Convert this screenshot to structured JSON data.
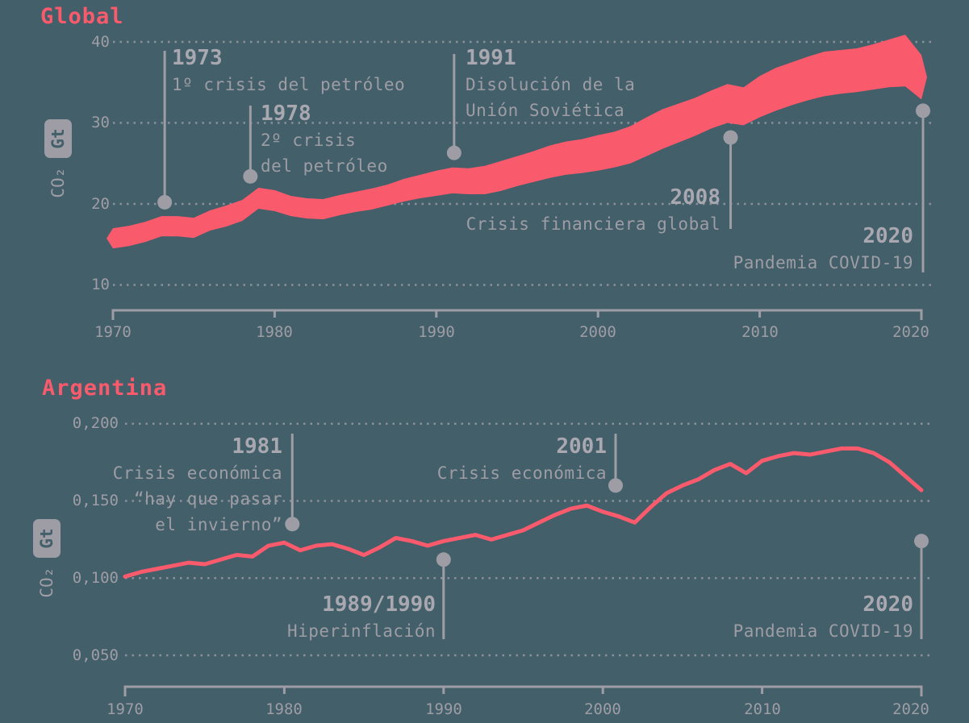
{
  "colors": {
    "background": "#425F6A",
    "accent": "#F95A6C",
    "label": "#9E9DA5",
    "label_strong": "#A9A8B0"
  },
  "chart_data": [
    {
      "id": "global",
      "type": "area",
      "title": "Global",
      "ylabel_prefix": "CO₂",
      "ylabel_badge": "Gt",
      "x": [
        1970,
        1971,
        1972,
        1973,
        1974,
        1975,
        1976,
        1977,
        1978,
        1979,
        1980,
        1981,
        1982,
        1983,
        1984,
        1985,
        1986,
        1987,
        1988,
        1989,
        1990,
        1991,
        1992,
        1993,
        1994,
        1995,
        1996,
        1997,
        1998,
        1999,
        2000,
        2001,
        2002,
        2003,
        2004,
        2005,
        2006,
        2007,
        2008,
        2009,
        2010,
        2011,
        2012,
        2013,
        2014,
        2015,
        2016,
        2017,
        2018,
        2019,
        2020
      ],
      "series": [
        {
          "name": "upper",
          "values": [
            17.0,
            17.3,
            17.8,
            18.5,
            18.5,
            18.3,
            19.2,
            19.8,
            20.5,
            22.0,
            21.7,
            21.0,
            20.7,
            20.6,
            21.1,
            21.5,
            21.9,
            22.4,
            23.1,
            23.6,
            24.1,
            24.5,
            24.4,
            24.7,
            25.3,
            25.9,
            26.5,
            27.2,
            27.7,
            28.0,
            28.5,
            28.9,
            29.6,
            30.7,
            31.7,
            32.4,
            33.1,
            34.0,
            34.8,
            34.4,
            35.8,
            36.8,
            37.5,
            38.2,
            38.8,
            39.0,
            39.2,
            39.7,
            40.3,
            40.9,
            38.4
          ]
        },
        {
          "name": "lower",
          "values": [
            14.5,
            14.8,
            15.3,
            16.0,
            16.0,
            15.8,
            16.7,
            17.2,
            17.9,
            19.4,
            19.1,
            18.5,
            18.2,
            18.1,
            18.6,
            19.0,
            19.3,
            19.8,
            20.3,
            20.7,
            21.0,
            21.3,
            21.2,
            21.2,
            21.6,
            22.2,
            22.7,
            23.2,
            23.6,
            23.8,
            24.1,
            24.5,
            25.0,
            25.9,
            26.8,
            27.6,
            28.4,
            29.3,
            30.0,
            29.7,
            30.7,
            31.5,
            32.2,
            32.8,
            33.3,
            33.6,
            33.8,
            34.1,
            34.4,
            34.5,
            32.9
          ]
        }
      ],
      "xlim": [
        1970,
        2020
      ],
      "ylim": [
        10,
        40
      ],
      "y_ticks": [
        {
          "label": "40",
          "value": 40
        },
        {
          "label": "30",
          "value": 30
        },
        {
          "label": "20",
          "value": 20
        },
        {
          "label": "10",
          "value": 10
        }
      ],
      "x_ticks": [
        {
          "label": "1970",
          "value": 1970
        },
        {
          "label": "1980",
          "value": 1980
        },
        {
          "label": "1990",
          "value": 1990
        },
        {
          "label": "2000",
          "value": 2000
        },
        {
          "label": "2010",
          "value": 2010
        },
        {
          "label": "2020",
          "value": 2020
        }
      ],
      "annotations": [
        {
          "year_label": "1973",
          "lines": [
            "1º crisis del petróleo"
          ],
          "year": 1973.2,
          "dot_value": 20.2,
          "label_position": "above"
        },
        {
          "year_label": "1978",
          "lines": [
            "2º crisis",
            "del petróleo"
          ],
          "year": 1978.5,
          "dot_value": 23.4,
          "label_position": "above"
        },
        {
          "year_label": "1991",
          "lines": [
            "Disolución de la",
            "Unión Soviética"
          ],
          "year": 1991.1,
          "dot_value": 26.3,
          "label_position": "above"
        },
        {
          "year_label": "2008",
          "lines": [
            "Crisis financiera global"
          ],
          "year": 2008.2,
          "dot_value": 28.2,
          "label_position": "below"
        },
        {
          "year_label": "2020",
          "lines": [
            "Pandemia COVID-19"
          ],
          "year": 2020.1,
          "dot_value": 31.5,
          "label_position": "below"
        }
      ]
    },
    {
      "id": "argentina",
      "type": "line",
      "title": "Argentina",
      "ylabel_prefix": "CO₂",
      "ylabel_badge": "Gt",
      "x": [
        1970,
        1971,
        1972,
        1973,
        1974,
        1975,
        1976,
        1977,
        1978,
        1979,
        1980,
        1981,
        1982,
        1983,
        1984,
        1985,
        1986,
        1987,
        1988,
        1989,
        1990,
        1991,
        1992,
        1993,
        1994,
        1995,
        1996,
        1997,
        1998,
        1999,
        2000,
        2001,
        2002,
        2003,
        2004,
        2005,
        2006,
        2007,
        2008,
        2009,
        2010,
        2011,
        2012,
        2013,
        2014,
        2015,
        2016,
        2017,
        2018,
        2019,
        2020
      ],
      "series": [
        {
          "name": "co2",
          "values": [
            0.101,
            0.104,
            0.106,
            0.108,
            0.11,
            0.109,
            0.112,
            0.115,
            0.114,
            0.121,
            0.123,
            0.118,
            0.121,
            0.122,
            0.119,
            0.115,
            0.12,
            0.126,
            0.124,
            0.121,
            0.124,
            0.126,
            0.128,
            0.125,
            0.128,
            0.131,
            0.136,
            0.141,
            0.145,
            0.147,
            0.143,
            0.14,
            0.136,
            0.146,
            0.155,
            0.16,
            0.164,
            0.17,
            0.174,
            0.168,
            0.176,
            0.179,
            0.181,
            0.18,
            0.182,
            0.184,
            0.184,
            0.181,
            0.175,
            0.166,
            0.157
          ]
        }
      ],
      "xlim": [
        1970,
        2020
      ],
      "ylim": [
        0.05,
        0.2
      ],
      "y_ticks": [
        {
          "label": "0,200",
          "value": 0.2
        },
        {
          "label": "0,150",
          "value": 0.15
        },
        {
          "label": "0,100",
          "value": 0.1
        },
        {
          "label": "0,050",
          "value": 0.05
        }
      ],
      "x_ticks": [
        {
          "label": "1970",
          "value": 1970
        },
        {
          "label": "1980",
          "value": 1980
        },
        {
          "label": "1990",
          "value": 1990
        },
        {
          "label": "2000",
          "value": 2000
        },
        {
          "label": "2010",
          "value": 2010
        },
        {
          "label": "2020",
          "value": 2020
        }
      ],
      "annotations": [
        {
          "year_label": "1981",
          "lines": [
            "Crisis económica",
            "“hay que pasar",
            "el invierno”"
          ],
          "year": 1980.5,
          "dot_value": 0.135,
          "label_position": "above"
        },
        {
          "year_label": "1989/1990",
          "lines": [
            "Hiperinflación"
          ],
          "year": 1990.0,
          "dot_value": 0.112,
          "label_position": "below"
        },
        {
          "year_label": "2001",
          "lines": [
            "Crisis económica"
          ],
          "year": 2000.8,
          "dot_value": 0.16,
          "label_position": "above"
        },
        {
          "year_label": "2020",
          "lines": [
            "Pandemia COVID-19"
          ],
          "year": 2020.0,
          "dot_value": 0.124,
          "label_position": "below"
        }
      ]
    }
  ]
}
